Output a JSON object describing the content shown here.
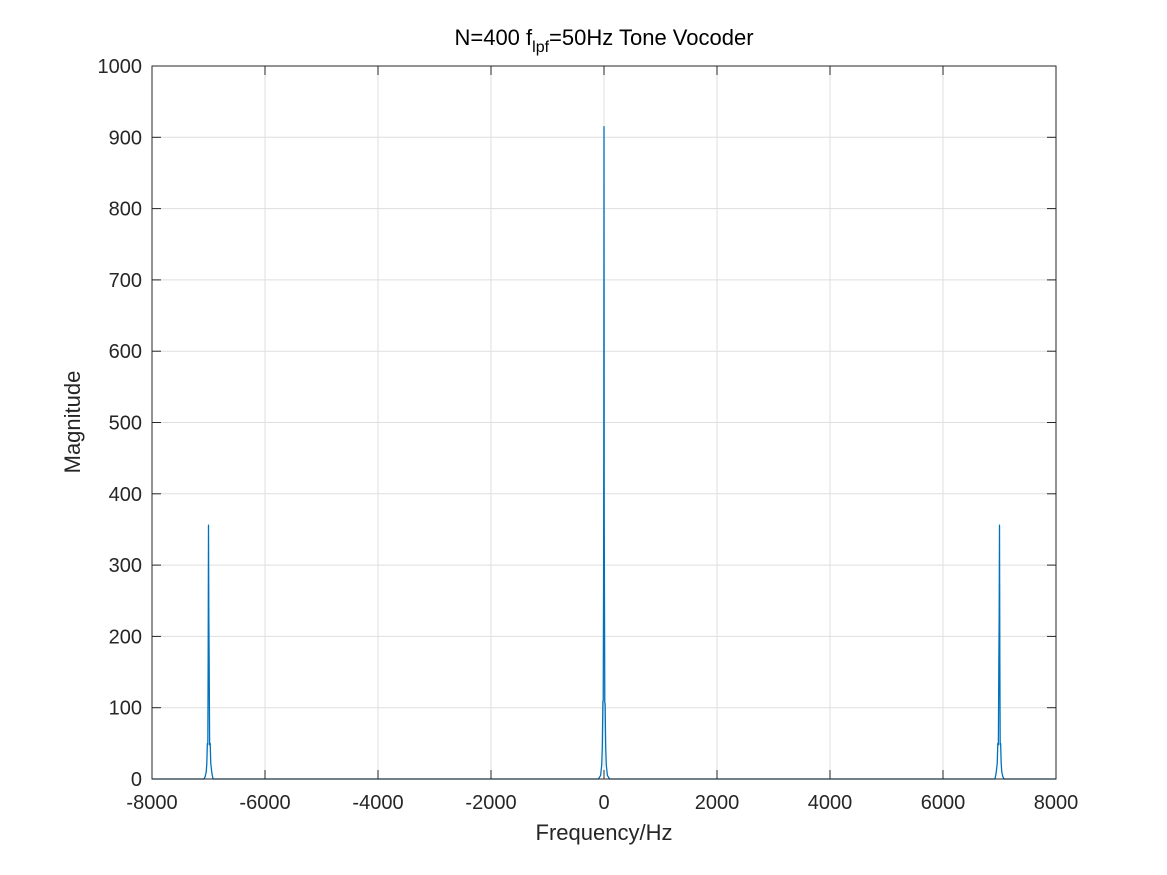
{
  "chart_data": {
    "type": "line",
    "title": {
      "prefix": "N=400 f",
      "subscript": "lpf",
      "suffix": "=50Hz Tone Vocoder"
    },
    "xlabel": "Frequency/Hz",
    "ylabel": "Magnitude",
    "xlim": [
      -8000,
      8000
    ],
    "ylim": [
      0,
      1000
    ],
    "xticks": [
      -8000,
      -6000,
      -4000,
      -2000,
      0,
      2000,
      4000,
      6000,
      8000
    ],
    "yticks": [
      0,
      100,
      200,
      300,
      400,
      500,
      600,
      700,
      800,
      900,
      1000
    ],
    "grid": true,
    "series": [
      {
        "color": "#0072BD",
        "x": [
          -8000,
          -7080,
          -7060,
          -7040,
          -7030,
          -7020,
          -7012,
          -7006,
          -7000,
          -6994,
          -6988,
          -6980,
          -6970,
          -6960,
          -6940,
          -6920,
          -100,
          -60,
          -40,
          -30,
          -20,
          -14,
          -8,
          -4,
          0,
          4,
          8,
          14,
          20,
          30,
          40,
          60,
          100,
          6920,
          6940,
          6960,
          6970,
          6980,
          6988,
          6994,
          7000,
          7006,
          7012,
          7020,
          7030,
          7040,
          7060,
          7080,
          8000
        ],
        "y": [
          0,
          0,
          3,
          10,
          22,
          50,
          48,
          165,
          356,
          225,
          160,
          48,
          50,
          22,
          8,
          0,
          0,
          5,
          20,
          45,
          108,
          110,
          260,
          450,
          915,
          370,
          262,
          108,
          105,
          45,
          20,
          5,
          0,
          0,
          8,
          22,
          50,
          48,
          160,
          225,
          356,
          165,
          48,
          50,
          22,
          10,
          3,
          0,
          0
        ]
      }
    ]
  }
}
